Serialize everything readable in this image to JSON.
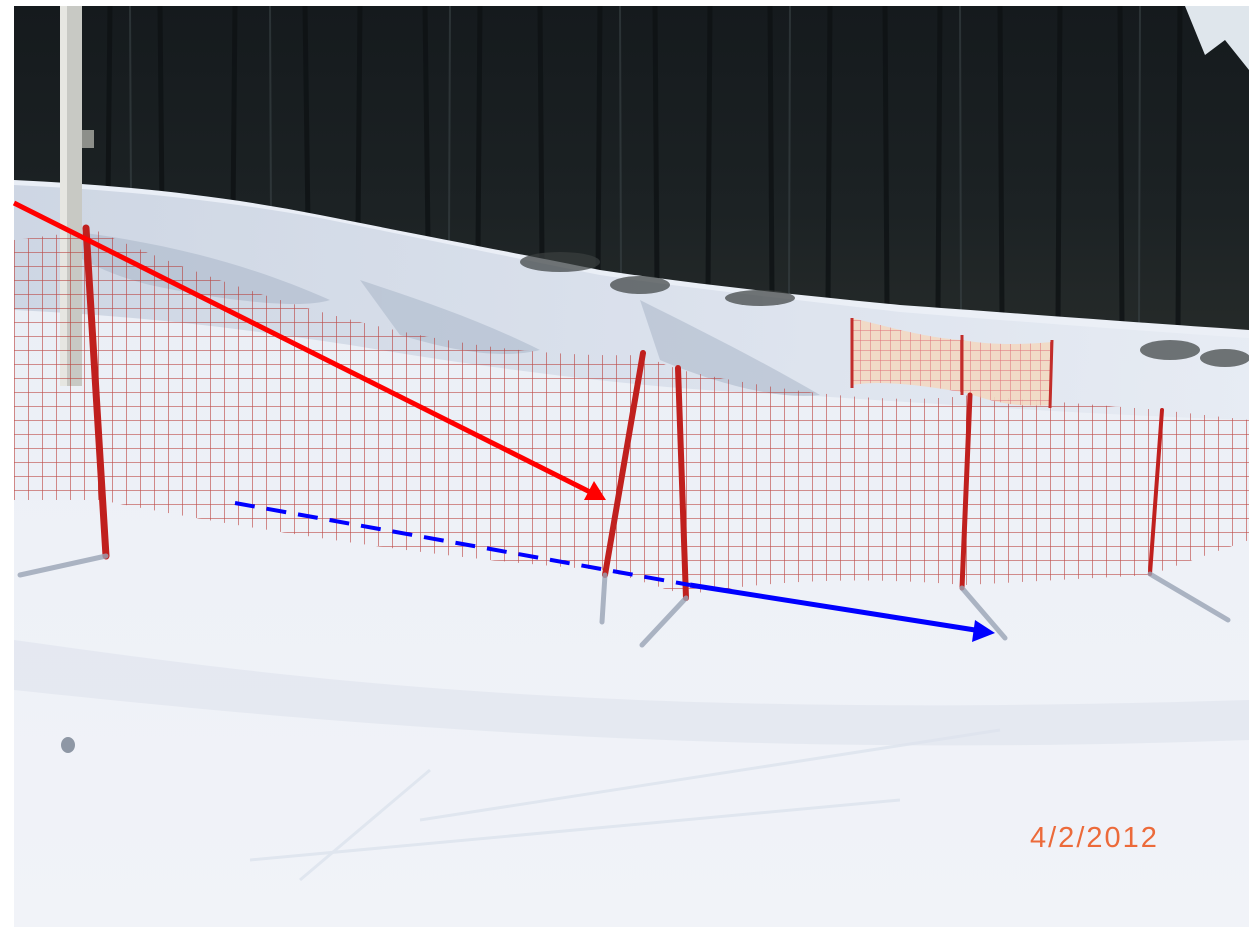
{
  "photo": {
    "date_stamp": "4/2/2012",
    "date_stamp_color": "#ec6a3a",
    "annotations": {
      "red_arrow_color": "#ff0000",
      "blue_arrow_color": "#0000ff",
      "blue_arrow_style": "dashed-then-solid"
    },
    "subjects": [
      "dark-conifer-forest",
      "snow-slope",
      "red-safety-net-fence",
      "red-fence-poles",
      "yellow-red-net-banner",
      "lift-pole",
      "groomed-snow"
    ]
  }
}
